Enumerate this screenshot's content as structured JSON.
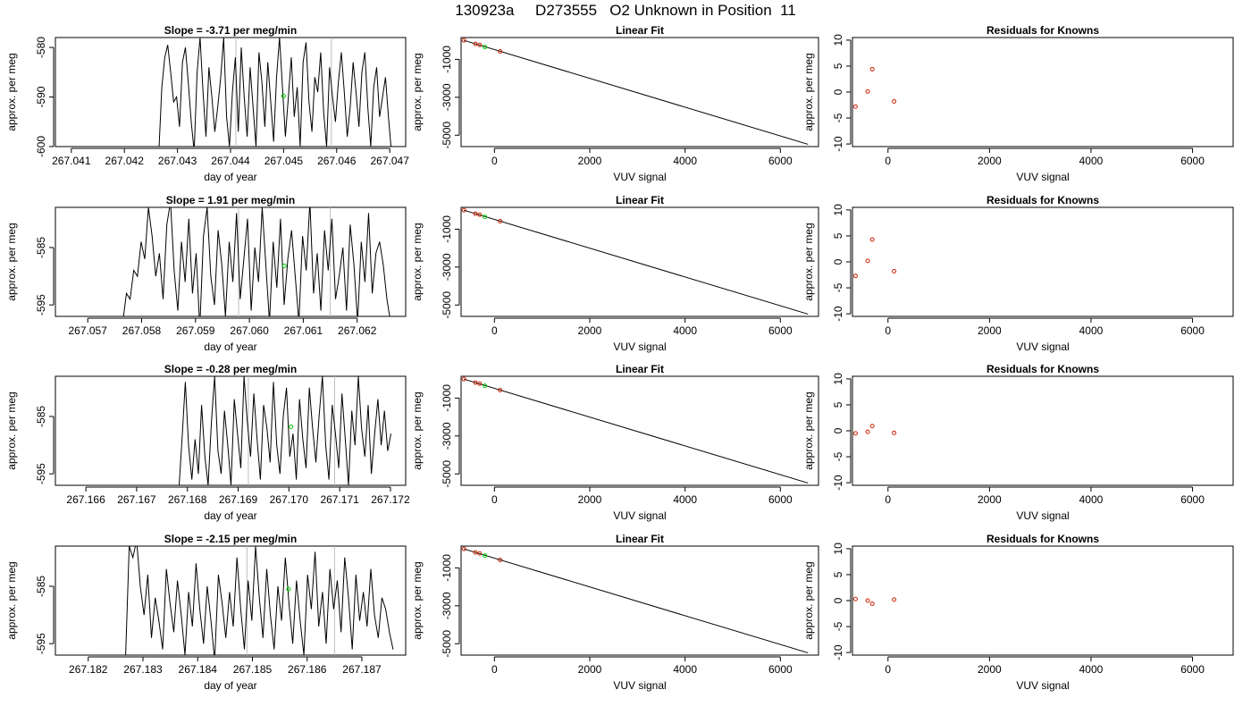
{
  "title": "130923a     D273555   O2 Unknown in Position  11",
  "colors": {
    "trace": "#000000",
    "marker_unknown": "#00cc00",
    "marker_known": "#cc2200",
    "guide": "#bebebe"
  },
  "chart_data": [
    {
      "type": "line",
      "title": "Slope =  -3.71  per meg/min",
      "xlabel": "day of year",
      "ylabel": "approx. per meg",
      "xlim": [
        267.0407,
        267.0473
      ],
      "ylim": [
        -600,
        -578
      ],
      "xticks": [
        "267.041",
        "267.042",
        "267.043",
        "267.044",
        "267.045",
        "267.046",
        "267.047"
      ],
      "xtick_values": [
        267.041,
        267.042,
        267.043,
        267.044,
        267.045,
        267.046,
        267.047
      ],
      "yticks": [
        "-600",
        "-590",
        "-580"
      ],
      "ytick_values": [
        -600,
        -590,
        -580
      ],
      "guides_x": [
        267.0441,
        267.0459
      ],
      "x_start": 267.04265,
      "x_end": 267.04703,
      "y": [
        -601,
        -588,
        -582,
        -579.5,
        -585,
        -591,
        -590,
        -596,
        -583,
        -580,
        -587,
        -595,
        -601,
        -585,
        -578,
        -589,
        -598,
        -584,
        -590,
        -597,
        -592,
        -586,
        -578,
        -594,
        -600,
        -589,
        -582,
        -597,
        -580,
        -590,
        -598,
        -584,
        -592,
        -600,
        -581,
        -587,
        -596,
        -583,
        -591,
        -599,
        -586,
        -578,
        -588,
        -598,
        -590,
        -582,
        -594,
        -588,
        -600,
        -583,
        -579,
        -591,
        -597,
        -586,
        -589,
        -581,
        -593,
        -600,
        -584,
        -590,
        -595,
        -587,
        -581,
        -589,
        -598,
        -592,
        -583,
        -589,
        -596,
        -585,
        -581,
        -592,
        -600,
        -588,
        -584,
        -594,
        -590,
        -586,
        -594,
        -601
      ],
      "marker": {
        "x": 267.045,
        "y": -589.8
      }
    },
    {
      "type": "line",
      "title": "Slope =  1.91  per meg/min",
      "xlabel": "day of year",
      "ylabel": "approx. per meg",
      "xlim": [
        267.0564,
        267.0629
      ],
      "ylim": [
        -597,
        -578
      ],
      "xticks": [
        "267.057",
        "267.058",
        "267.059",
        "267.060",
        "267.061",
        "267.062"
      ],
      "xtick_values": [
        267.057,
        267.058,
        267.059,
        267.06,
        267.061,
        267.062
      ],
      "yticks": [
        "-595",
        "-585"
      ],
      "ytick_values": [
        -595,
        -585
      ],
      "guides_x": [
        267.0598,
        267.0615
      ],
      "x_start": 267.05765,
      "x_end": 267.06262,
      "y": [
        -598,
        -593,
        -594,
        -589,
        -590,
        -584,
        -587,
        -578,
        -583,
        -590,
        -586,
        -594,
        -581,
        -577,
        -589,
        -596,
        -584,
        -591,
        -580,
        -593,
        -586,
        -599,
        -583,
        -578,
        -590,
        -595,
        -582,
        -588,
        -597,
        -584,
        -591,
        -579,
        -594,
        -587,
        -580,
        -596,
        -585,
        -591,
        -578,
        -588,
        -598,
        -584,
        -592,
        -580,
        -595,
        -587,
        -582,
        -590,
        -598,
        -583,
        -589,
        -577,
        -593,
        -586,
        -596,
        -582,
        -589,
        -580,
        -594,
        -590,
        -585,
        -596,
        -581,
        -588,
        -598,
        -584,
        -591,
        -579,
        -593,
        -586,
        -584,
        -588,
        -594,
        -598
      ],
      "marker": {
        "x": 267.06065,
        "y": -588.2
      }
    },
    {
      "type": "line",
      "title": "Slope =  -0.28  per meg/min",
      "xlabel": "day of year",
      "ylabel": "approx. per meg",
      "xlim": [
        267.1654,
        267.1723
      ],
      "ylim": [
        -597,
        -578
      ],
      "xticks": [
        "267.166",
        "267.167",
        "267.168",
        "267.169",
        "267.170",
        "267.171",
        "267.172"
      ],
      "xtick_values": [
        267.166,
        267.167,
        267.168,
        267.169,
        267.17,
        267.171,
        267.172
      ],
      "yticks": [
        "-595",
        "-585"
      ],
      "ytick_values": [
        -595,
        -585
      ],
      "guides_x": [
        267.1692,
        267.1709
      ],
      "x_start": 267.16783,
      "x_end": 267.17201,
      "y": [
        -598,
        -589,
        -579,
        -590,
        -596,
        -589,
        -595,
        -583,
        -592,
        -597,
        -586,
        -578,
        -591,
        -595,
        -584,
        -590,
        -597,
        -582,
        -588,
        -594,
        -578,
        -586,
        -592,
        -581,
        -589,
        -596,
        -583,
        -587,
        -593,
        -579,
        -590,
        -595,
        -585,
        -580,
        -592,
        -588,
        -596,
        -582,
        -589,
        -594,
        -580,
        -587,
        -593,
        -585,
        -578,
        -590,
        -596,
        -583,
        -588,
        -594,
        -581,
        -589,
        -597,
        -584,
        -590,
        -578,
        -587,
        -592,
        -583,
        -595,
        -588,
        -582,
        -590,
        -584,
        -591,
        -588
      ],
      "marker": {
        "x": 267.17004,
        "y": -586.8
      }
    },
    {
      "type": "line",
      "title": "Slope =  -2.15  per meg/min",
      "xlabel": "day of year",
      "ylabel": "approx. per meg",
      "xlim": [
        267.1814,
        267.1878
      ],
      "ylim": [
        -597,
        -578
      ],
      "xticks": [
        "267.182",
        "267.183",
        "267.184",
        "267.185",
        "267.186",
        "267.187"
      ],
      "xtick_values": [
        267.182,
        267.183,
        267.184,
        267.185,
        267.186,
        267.187
      ],
      "yticks": [
        "-595",
        "-585"
      ],
      "ytick_values": [
        -595,
        -585
      ],
      "guides_x": [
        267.1849,
        267.1865
      ],
      "x_start": 267.18268,
      "x_end": 267.18757,
      "y": [
        -598,
        -578,
        -580,
        -577,
        -585,
        -590,
        -583,
        -594,
        -587,
        -591,
        -596,
        -582,
        -588,
        -593,
        -584,
        -590,
        -597,
        -586,
        -592,
        -581,
        -589,
        -595,
        -585,
        -591,
        -598,
        -583,
        -588,
        -594,
        -586,
        -592,
        -580,
        -589,
        -596,
        -584,
        -591,
        -578,
        -587,
        -594,
        -582,
        -590,
        -596,
        -585,
        -591,
        -580,
        -588,
        -595,
        -584,
        -591,
        -597,
        -583,
        -589,
        -579,
        -592,
        -586,
        -595,
        -582,
        -589,
        -584,
        -593,
        -580,
        -587,
        -596,
        -583,
        -591,
        -586,
        -592,
        -582,
        -590,
        -594,
        -587,
        -589,
        -593,
        -596
      ],
      "marker": {
        "x": 267.18566,
        "y": -585.5
      }
    }
  ],
  "linear_fit": {
    "type": "line",
    "title": "Linear Fit",
    "xlabel": "VUV signal",
    "ylabel": "approx. per meg",
    "xlim": [
      -700,
      6800
    ],
    "ylim": [
      -5600,
      150
    ],
    "xticks": [
      "0",
      "2000",
      "4000",
      "6000"
    ],
    "xtick_values": [
      0,
      2000,
      4000,
      6000
    ],
    "yticks": [
      "-5000",
      "-3000",
      "-1000"
    ],
    "ytick_values": [
      -5000,
      -3000,
      -1000
    ],
    "line": [
      [
        -640,
        0
      ],
      [
        6580,
        -5480
      ]
    ],
    "knowns": [
      [
        -640,
        0
      ],
      [
        -400,
        -185
      ],
      [
        -310,
        -240
      ],
      [
        120,
        -580
      ]
    ],
    "unknown": [
      [
        -200,
        -350
      ]
    ]
  },
  "residuals": [
    {
      "type": "scatter",
      "title": "Residuals for Knowns",
      "xlabel": "VUV signal",
      "ylabel": "approx. per meg",
      "xlim": [
        -700,
        6800
      ],
      "ylim": [
        -10.5,
        10.5
      ],
      "xticks": [
        "0",
        "2000",
        "4000",
        "6000"
      ],
      "xtick_values": [
        0,
        2000,
        4000,
        6000
      ],
      "yticks": [
        "-10",
        "-5",
        "0",
        "5",
        "10"
      ],
      "ytick_values": [
        -10,
        -5,
        0,
        5,
        10
      ],
      "points": [
        [
          -640,
          -2.8
        ],
        [
          -400,
          0.1
        ],
        [
          -310,
          4.4
        ],
        [
          120,
          -1.8
        ]
      ]
    },
    {
      "type": "scatter",
      "title": "Residuals for Knowns",
      "xlabel": "VUV signal",
      "ylabel": "approx. per meg",
      "xlim": [
        -700,
        6800
      ],
      "ylim": [
        -10.5,
        10.5
      ],
      "xticks": [
        "0",
        "2000",
        "4000",
        "6000"
      ],
      "xtick_values": [
        0,
        2000,
        4000,
        6000
      ],
      "yticks": [
        "-10",
        "-5",
        "0",
        "5",
        "10"
      ],
      "ytick_values": [
        -10,
        -5,
        0,
        5,
        10
      ],
      "points": [
        [
          -640,
          -2.7
        ],
        [
          -400,
          0.2
        ],
        [
          -310,
          4.3
        ],
        [
          120,
          -1.8
        ]
      ]
    },
    {
      "type": "scatter",
      "title": "Residuals for Knowns",
      "xlabel": "VUV signal",
      "ylabel": "approx. per meg",
      "xlim": [
        -700,
        6800
      ],
      "ylim": [
        -10.5,
        10.5
      ],
      "xticks": [
        "0",
        "2000",
        "4000",
        "6000"
      ],
      "xtick_values": [
        0,
        2000,
        4000,
        6000
      ],
      "yticks": [
        "-10",
        "-5",
        "0",
        "5",
        "10"
      ],
      "ytick_values": [
        -10,
        -5,
        0,
        5,
        10
      ],
      "points": [
        [
          -640,
          -0.5
        ],
        [
          -400,
          -0.2
        ],
        [
          -310,
          0.9
        ],
        [
          120,
          -0.4
        ]
      ]
    },
    {
      "type": "scatter",
      "title": "Residuals for Knowns",
      "xlabel": "VUV signal",
      "ylabel": "approx. per meg",
      "xlim": [
        -700,
        6800
      ],
      "ylim": [
        -10.5,
        10.5
      ],
      "xticks": [
        "0",
        "2000",
        "4000",
        "6000"
      ],
      "xtick_values": [
        0,
        2000,
        4000,
        6000
      ],
      "yticks": [
        "-10",
        "-5",
        "0",
        "5",
        "10"
      ],
      "ytick_values": [
        -10,
        -5,
        0,
        5,
        10
      ],
      "points": [
        [
          -640,
          0.3
        ],
        [
          -400,
          0.0
        ],
        [
          -310,
          -0.6
        ],
        [
          120,
          0.2
        ]
      ]
    }
  ]
}
